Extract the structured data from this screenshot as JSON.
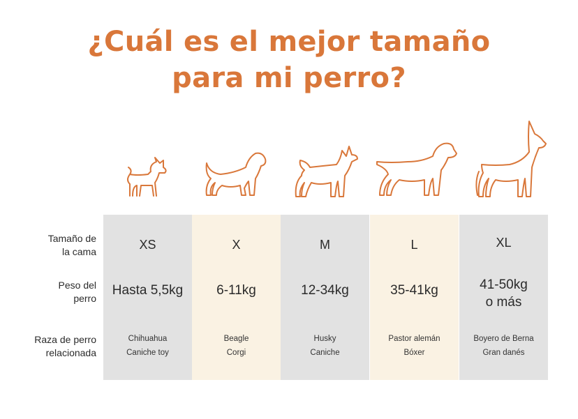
{
  "title": {
    "line1": "¿Cuál es el mejor tamaño",
    "line2": "para mi perro?"
  },
  "row_labels": {
    "size": [
      "Tamaño de",
      "la cama"
    ],
    "weight": [
      "Peso del",
      "perro"
    ],
    "breed": [
      "Raza de perro",
      "relacionada"
    ]
  },
  "columns": [
    {
      "size": "XS",
      "weight": [
        "Hasta 5,5kg"
      ],
      "breeds": [
        "Chihuahua",
        "Caniche toy"
      ],
      "bg": "#e2e2e2",
      "icon": "chihuahua-icon"
    },
    {
      "size": "X",
      "weight": [
        "6-11kg"
      ],
      "breeds": [
        "Beagle",
        "Corgi"
      ],
      "bg": "#faf2e3",
      "icon": "beagle-icon"
    },
    {
      "size": "M",
      "weight": [
        "12-34kg"
      ],
      "breeds": [
        "Husky",
        "Caniche"
      ],
      "bg": "#e2e2e2",
      "icon": "husky-icon"
    },
    {
      "size": "L",
      "weight": [
        "35-41kg"
      ],
      "breeds": [
        "Pastor alemán",
        "Bóxer"
      ],
      "bg": "#faf2e3",
      "icon": "retriever-icon"
    },
    {
      "size": "XL",
      "weight": [
        "41-50kg",
        "o más"
      ],
      "breeds": [
        "Boyero de Berna",
        "Gran danés"
      ],
      "bg": "#e2e2e2",
      "icon": "great-dane-icon"
    }
  ],
  "colors": {
    "accent": "#d9773a",
    "gray_column": "#e2e2e2",
    "cream_column": "#faf2e3"
  }
}
